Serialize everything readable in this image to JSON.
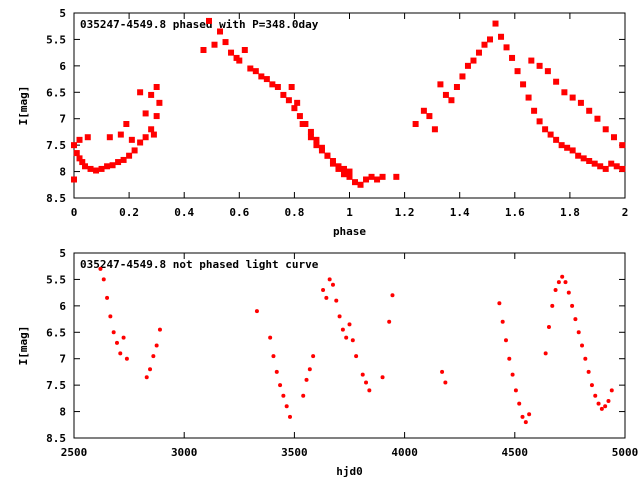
{
  "chart_data": [
    {
      "type": "scatter",
      "title": "035247-4549.8 phased with P=348.0day",
      "xlabel": "phase",
      "ylabel": "I[mag]",
      "xlim": [
        0,
        2
      ],
      "ylim": [
        8.5,
        5
      ],
      "y_inverted": true,
      "xticks": [
        "0",
        "0.2",
        "0.4",
        "0.6",
        "0.8",
        "1",
        "1.2",
        "1.4",
        "1.6",
        "1.8",
        "2"
      ],
      "yticks": [
        "5",
        "5.5",
        "6",
        "6.5",
        "7",
        "7.5",
        "8",
        "8.5"
      ],
      "marker_color": "#ff0000",
      "marker": "filled-square",
      "series": [
        {
          "x": [
            0.0,
            0.01,
            0.02,
            0.03,
            0.04,
            0.06,
            0.08,
            0.1,
            0.12,
            0.14,
            0.16,
            0.18,
            0.2,
            0.22,
            0.24,
            0.26,
            0.28,
            0.3,
            0.0,
            0.02,
            0.05,
            0.13,
            0.17,
            0.19,
            0.21,
            0.24,
            0.26,
            0.28,
            0.29,
            0.3,
            0.31,
            0.47,
            0.49,
            0.51,
            0.53,
            0.55,
            0.57,
            0.59,
            0.6,
            0.62,
            0.64,
            0.66,
            0.68,
            0.7,
            0.72,
            0.74,
            0.76,
            0.78,
            0.8,
            0.82,
            0.84,
            0.86,
            0.88,
            0.9,
            0.92,
            0.94,
            0.96,
            0.98,
            1.0,
            1.02,
            1.04,
            1.06,
            1.08,
            1.1,
            1.12,
            1.17,
            0.79,
            0.81,
            0.83,
            0.86,
            0.88,
            0.9,
            0.92,
            0.94,
            0.96,
            0.98,
            1.0,
            1.24,
            1.27,
            1.29,
            1.31,
            1.33,
            1.35,
            1.37,
            1.39,
            1.41,
            1.43,
            1.45,
            1.47,
            1.49,
            1.51,
            1.53,
            1.55,
            1.57,
            1.59,
            1.61,
            1.63,
            1.65,
            1.67,
            1.69,
            1.71,
            1.73,
            1.75,
            1.77,
            1.79,
            1.81,
            1.83,
            1.85,
            1.87,
            1.89,
            1.91,
            1.93,
            1.95,
            1.97,
            1.99,
            1.66,
            1.69,
            1.72,
            1.75,
            1.78,
            1.81,
            1.84,
            1.87,
            1.9,
            1.93,
            1.96,
            1.99
          ],
          "y": [
            7.5,
            7.65,
            7.75,
            7.82,
            7.9,
            7.95,
            7.98,
            7.95,
            7.9,
            7.88,
            7.82,
            7.78,
            7.7,
            7.6,
            7.45,
            7.35,
            7.2,
            6.95,
            8.15,
            7.4,
            7.35,
            7.35,
            7.3,
            7.1,
            7.4,
            6.5,
            6.9,
            6.55,
            7.3,
            6.4,
            6.7,
            5.7,
            5.15,
            5.6,
            5.35,
            5.55,
            5.75,
            5.85,
            5.9,
            5.7,
            6.05,
            6.1,
            6.2,
            6.25,
            6.35,
            6.4,
            6.55,
            6.65,
            6.8,
            6.95,
            7.1,
            7.25,
            7.4,
            7.55,
            7.7,
            7.85,
            7.95,
            8.05,
            8.1,
            8.2,
            8.25,
            8.15,
            8.1,
            8.15,
            8.1,
            8.1,
            6.4,
            6.7,
            7.1,
            7.35,
            7.5,
            7.6,
            7.7,
            7.8,
            7.9,
            7.95,
            8.0,
            7.1,
            6.85,
            6.95,
            7.2,
            6.35,
            6.55,
            6.65,
            6.4,
            6.2,
            6.0,
            5.9,
            5.75,
            5.6,
            5.5,
            5.2,
            5.45,
            5.65,
            5.85,
            6.1,
            6.35,
            6.6,
            6.85,
            7.05,
            7.2,
            7.3,
            7.4,
            7.5,
            7.55,
            7.6,
            7.7,
            7.75,
            7.8,
            7.85,
            7.9,
            7.95,
            7.85,
            7.9,
            7.95,
            5.9,
            6.0,
            6.1,
            6.3,
            6.5,
            6.6,
            6.7,
            6.85,
            7.0,
            7.2,
            7.35,
            7.5
          ]
        }
      ]
    },
    {
      "type": "scatter",
      "title": "035247-4549.8 not phased light curve",
      "xlabel": "hjd0",
      "ylabel": "I[mag]",
      "xlim": [
        2500,
        5000
      ],
      "ylim": [
        8.5,
        5
      ],
      "y_inverted": true,
      "xticks": [
        "2500",
        "3000",
        "3500",
        "4000",
        "4500",
        "5000"
      ],
      "yticks": [
        "5",
        "5.5",
        "6",
        "6.5",
        "7",
        "7.5",
        "8",
        "8.5"
      ],
      "marker_color": "#ff0000",
      "marker": "dot",
      "series": [
        {
          "x": [
            2620,
            2635,
            2650,
            2665,
            2680,
            2695,
            2710,
            2725,
            2740,
            2830,
            2845,
            2860,
            2875,
            2890,
            3330,
            3390,
            3405,
            3420,
            3435,
            3450,
            3465,
            3480,
            3540,
            3555,
            3570,
            3585,
            3630,
            3645,
            3660,
            3675,
            3690,
            3705,
            3720,
            3735,
            3750,
            3765,
            3780,
            3810,
            3825,
            3840,
            3900,
            3930,
            3945,
            4170,
            4185,
            4430,
            4445,
            4460,
            4475,
            4490,
            4505,
            4520,
            4535,
            4550,
            4565,
            4640,
            4655,
            4670,
            4685,
            4700,
            4715,
            4730,
            4745,
            4760,
            4775,
            4790,
            4805,
            4820,
            4835,
            4850,
            4865,
            4880,
            4895,
            4910,
            4925,
            4940
          ],
          "y": [
            5.3,
            5.5,
            5.85,
            6.2,
            6.5,
            6.7,
            6.9,
            6.6,
            7.0,
            7.35,
            7.2,
            6.95,
            6.75,
            6.45,
            6.1,
            6.6,
            6.95,
            7.25,
            7.5,
            7.7,
            7.9,
            8.1,
            7.7,
            7.4,
            7.2,
            6.95,
            5.7,
            5.85,
            5.5,
            5.6,
            5.9,
            6.2,
            6.45,
            6.6,
            6.35,
            6.65,
            6.95,
            7.3,
            7.45,
            7.6,
            7.35,
            6.3,
            5.8,
            7.25,
            7.45,
            5.95,
            6.3,
            6.65,
            7.0,
            7.3,
            7.6,
            7.85,
            8.1,
            8.2,
            8.05,
            6.9,
            6.4,
            6.0,
            5.7,
            5.55,
            5.45,
            5.55,
            5.75,
            6.0,
            6.25,
            6.5,
            6.75,
            7.0,
            7.25,
            7.5,
            7.7,
            7.85,
            7.95,
            7.9,
            7.8,
            7.6
          ]
        }
      ]
    }
  ]
}
